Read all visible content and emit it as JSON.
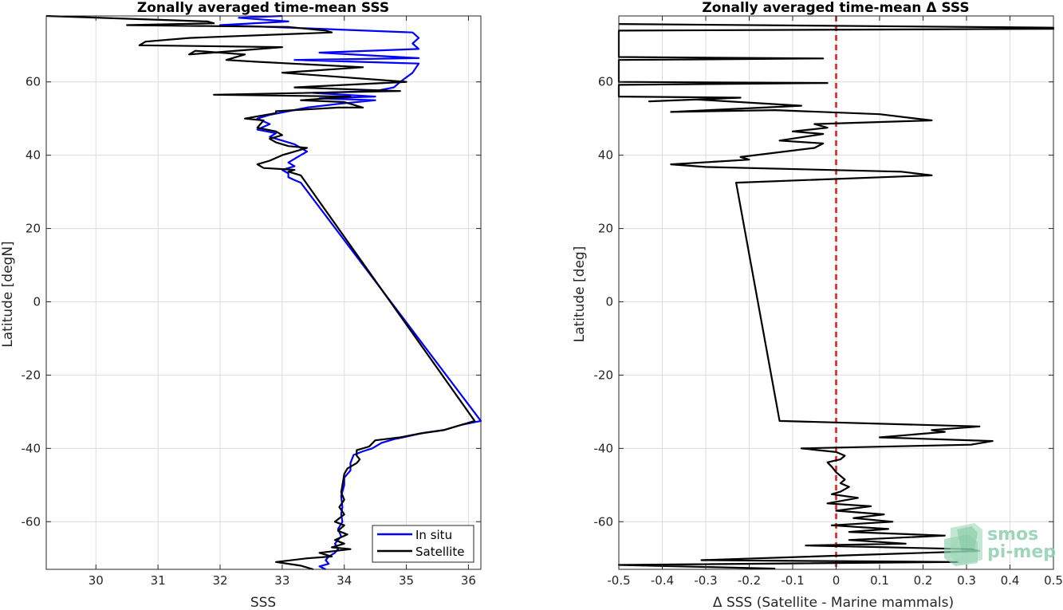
{
  "chart_data": [
    {
      "type": "line",
      "title": "Zonally averaged time-mean SSS",
      "xlabel": "SSS",
      "ylabel": "Latitude [degN]",
      "xlim": [
        29.2,
        36.2
      ],
      "ylim": [
        -73,
        78
      ],
      "xticks": [
        30,
        31,
        32,
        33,
        34,
        35,
        36
      ],
      "yticks": [
        -60,
        -40,
        -20,
        0,
        20,
        40,
        60
      ],
      "grid": true,
      "legend_position": "bottom-right",
      "series": [
        {
          "name": "In situ",
          "color": "#0000ff",
          "points": [
            [
              33.0,
              78
            ],
            [
              32.3,
              77.5
            ],
            [
              33.1,
              76.5
            ],
            [
              32.0,
              75.5
            ],
            [
              33.6,
              74.5
            ],
            [
              35.1,
              73.5
            ],
            [
              35.2,
              72
            ],
            [
              35.1,
              70.5
            ],
            [
              35.2,
              69
            ],
            [
              33.6,
              68
            ],
            [
              35.2,
              66.5
            ],
            [
              33.2,
              66
            ],
            [
              35.2,
              65
            ],
            [
              35.1,
              62.5
            ],
            [
              34.9,
              60
            ],
            [
              34.8,
              58.5
            ],
            [
              34.5,
              57.5
            ],
            [
              33.5,
              57
            ],
            [
              34.5,
              56
            ],
            [
              33.6,
              55.5
            ],
            [
              34.5,
              55
            ],
            [
              33.9,
              54
            ],
            [
              33.4,
              53
            ],
            [
              33.1,
              52
            ],
            [
              32.8,
              51
            ],
            [
              32.6,
              50
            ],
            [
              32.8,
              48.5
            ],
            [
              32.6,
              47
            ],
            [
              32.9,
              46
            ],
            [
              32.8,
              45
            ],
            [
              33.0,
              44
            ],
            [
              33.2,
              43
            ],
            [
              33.3,
              42
            ],
            [
              33.4,
              41
            ],
            [
              33.3,
              40
            ],
            [
              33.2,
              39
            ],
            [
              33.1,
              38
            ],
            [
              33.2,
              37
            ],
            [
              33.0,
              36
            ],
            [
              33.1,
              35
            ],
            [
              33.1,
              34
            ],
            [
              33.2,
              33.2
            ],
            [
              33.3,
              32.5
            ],
            [
              36.2,
              -32.5
            ],
            [
              35.9,
              -33.5
            ],
            [
              35.6,
              -35
            ],
            [
              35.3,
              -35.7
            ],
            [
              35.0,
              -36.8
            ],
            [
              34.8,
              -37.5
            ],
            [
              34.6,
              -38.5
            ],
            [
              34.45,
              -40
            ],
            [
              34.3,
              -40.8
            ],
            [
              34.15,
              -41.8
            ],
            [
              34.1,
              -44
            ],
            [
              34.1,
              -46
            ],
            [
              34.0,
              -48
            ],
            [
              34.0,
              -50
            ],
            [
              33.95,
              -53
            ],
            [
              33.97,
              -56
            ],
            [
              33.95,
              -58
            ],
            [
              33.97,
              -60
            ],
            [
              33.9,
              -62
            ],
            [
              33.95,
              -64
            ],
            [
              33.85,
              -66
            ],
            [
              33.9,
              -67.5
            ],
            [
              33.85,
              -68.5
            ],
            [
              33.75,
              -69.5
            ],
            [
              33.7,
              -70.5
            ],
            [
              33.75,
              -71.5
            ],
            [
              33.6,
              -72.2
            ],
            [
              33.7,
              -73
            ]
          ]
        },
        {
          "name": "Satellite",
          "color": "#000000",
          "points": [
            [
              29.2,
              78
            ],
            [
              31.8,
              76.5
            ],
            [
              31.9,
              76
            ],
            [
              30.5,
              75.5
            ],
            [
              33.1,
              75
            ],
            [
              33.7,
              74
            ],
            [
              33.8,
              73.5
            ],
            [
              31.5,
              72
            ],
            [
              30.8,
              71
            ],
            [
              30.7,
              70
            ],
            [
              33.0,
              69.5
            ],
            [
              31.5,
              67.5
            ],
            [
              31.6,
              68.5
            ],
            [
              32.4,
              67.5
            ],
            [
              32.1,
              66
            ],
            [
              32.6,
              65.5
            ],
            [
              34.3,
              64
            ],
            [
              33.0,
              62.5
            ],
            [
              35.0,
              60
            ],
            [
              33.2,
              58.5
            ],
            [
              34.9,
              57.5
            ],
            [
              31.9,
              56.5
            ],
            [
              34.1,
              56
            ],
            [
              33.3,
              55
            ],
            [
              34.0,
              54.5
            ],
            [
              34.3,
              53
            ],
            [
              33.9,
              53
            ],
            [
              32.9,
              52
            ],
            [
              32.9,
              51.5
            ],
            [
              32.4,
              50
            ],
            [
              32.7,
              49.5
            ],
            [
              32.6,
              47.5
            ],
            [
              32.9,
              46.5
            ],
            [
              33.0,
              45.5
            ],
            [
              32.8,
              44.5
            ],
            [
              32.9,
              43.5
            ],
            [
              33.1,
              42.5
            ],
            [
              33.4,
              42
            ],
            [
              33.2,
              41
            ],
            [
              33.0,
              40
            ],
            [
              32.8,
              38.5
            ],
            [
              32.6,
              37.5
            ],
            [
              32.7,
              36.5
            ],
            [
              33.2,
              36
            ],
            [
              33.1,
              35.5
            ],
            [
              33.3,
              34.5
            ],
            [
              36.1,
              -32.5
            ],
            [
              35.8,
              -34
            ],
            [
              35.6,
              -35
            ],
            [
              35.2,
              -36
            ],
            [
              34.9,
              -37
            ],
            [
              34.5,
              -37.8
            ],
            [
              34.4,
              -39.5
            ],
            [
              34.2,
              -40.5
            ],
            [
              34.2,
              -41.5
            ],
            [
              34.2,
              -42
            ],
            [
              34.25,
              -43
            ],
            [
              34.2,
              -44
            ],
            [
              34.05,
              -45.5
            ],
            [
              34.0,
              -47
            ],
            [
              33.97,
              -50
            ],
            [
              33.95,
              -52
            ],
            [
              34.0,
              -54
            ],
            [
              33.92,
              -56
            ],
            [
              34.0,
              -58
            ],
            [
              33.85,
              -60
            ],
            [
              34.0,
              -61
            ],
            [
              33.9,
              -62.5
            ],
            [
              34.05,
              -63.5
            ],
            [
              33.85,
              -65
            ],
            [
              34.0,
              -66
            ],
            [
              33.8,
              -67
            ],
            [
              34.1,
              -67.5
            ],
            [
              33.6,
              -68.5
            ],
            [
              33.8,
              -69.5
            ],
            [
              33.4,
              -70
            ],
            [
              32.9,
              -71
            ],
            [
              33.3,
              -72
            ],
            [
              33.5,
              -73
            ]
          ]
        }
      ]
    },
    {
      "type": "line",
      "title": "Zonally averaged time-mean Δ SSS",
      "xlabel": "Δ SSS (Satellite - Marine mammals)",
      "ylabel": "Latitude [deg]",
      "xlim": [
        -0.5,
        0.5
      ],
      "ylim": [
        -73,
        78
      ],
      "xticks": [
        -0.5,
        -0.4,
        -0.3,
        -0.2,
        -0.1,
        0,
        0.1,
        0.2,
        0.3,
        0.4,
        0.5
      ],
      "yticks": [
        -60,
        -40,
        -20,
        0,
        20,
        40,
        60
      ],
      "grid": true,
      "reference_line": {
        "x": 0,
        "color": "#dd1c1c",
        "style": "dashed"
      },
      "series": [
        {
          "name": "",
          "color": "#000000",
          "points": [
            [
              -0.5,
              75.8
            ],
            [
              0.5,
              74.8
            ],
            [
              0.5,
              74.5
            ],
            [
              -0.5,
              74.0
            ],
            [
              -0.5,
              66.8
            ],
            [
              -0.03,
              66.4
            ],
            [
              -0.5,
              66.0
            ],
            [
              -0.5,
              60.0
            ],
            [
              -0.02,
              59.7
            ],
            [
              -0.5,
              59.2
            ],
            [
              -0.5,
              56.0
            ],
            [
              -0.22,
              55.7
            ],
            [
              -0.43,
              54.7
            ],
            [
              -0.32,
              55.2
            ],
            [
              -0.08,
              53.5
            ],
            [
              -0.38,
              51.8
            ],
            [
              -0.14,
              52.3
            ],
            [
              0.1,
              51.2
            ],
            [
              0.22,
              49.5
            ],
            [
              -0.05,
              48.5
            ],
            [
              -0.02,
              47.5
            ],
            [
              -0.1,
              46.5
            ],
            [
              -0.03,
              45.8
            ],
            [
              -0.13,
              44.0
            ],
            [
              -0.03,
              43.2
            ],
            [
              -0.05,
              42.0
            ],
            [
              -0.22,
              39.5
            ],
            [
              -0.2,
              38.8
            ],
            [
              -0.38,
              37.5
            ],
            [
              -0.3,
              36.8
            ],
            [
              0.15,
              35.5
            ],
            [
              0.22,
              34.5
            ],
            [
              -0.23,
              32.5
            ],
            [
              -0.13,
              -32.5
            ],
            [
              0.33,
              -34.0
            ],
            [
              0.22,
              -35.0
            ],
            [
              0.25,
              -35.5
            ],
            [
              0.1,
              -37.0
            ],
            [
              0.36,
              -38.0
            ],
            [
              0.31,
              -39.0
            ],
            [
              -0.08,
              -40.0
            ],
            [
              0.0,
              -41.0
            ],
            [
              0.02,
              -42.0
            ],
            [
              0.01,
              -43.0
            ],
            [
              -0.02,
              -43.8
            ],
            [
              -0.01,
              -45.0
            ],
            [
              0.0,
              -46.5
            ],
            [
              0.02,
              -48.5
            ],
            [
              0.01,
              -49.5
            ],
            [
              0.03,
              -50.5
            ],
            [
              0.01,
              -51.8
            ],
            [
              -0.01,
              -52.5
            ],
            [
              0.05,
              -53.5
            ],
            [
              -0.02,
              -55.0
            ],
            [
              0.08,
              -55.8
            ],
            [
              0.0,
              -57.0
            ],
            [
              0.11,
              -58.0
            ],
            [
              0.04,
              -59.0
            ],
            [
              0.13,
              -60.0
            ],
            [
              -0.01,
              -61.0
            ],
            [
              0.12,
              -62.0
            ],
            [
              0.03,
              -62.8
            ],
            [
              0.25,
              -63.8
            ],
            [
              0.03,
              -65.0
            ],
            [
              0.16,
              -66.0
            ],
            [
              -0.07,
              -66.5
            ],
            [
              0.31,
              -67.5
            ],
            [
              0.33,
              -68.0
            ],
            [
              -0.31,
              -70.5
            ],
            [
              0.28,
              -71.0
            ],
            [
              -0.5,
              -71.8
            ],
            [
              -0.14,
              -72.8
            ]
          ]
        }
      ]
    }
  ],
  "watermark": {
    "line1": "smos",
    "line2": "pi-mep",
    "color": "#8fcfae"
  }
}
